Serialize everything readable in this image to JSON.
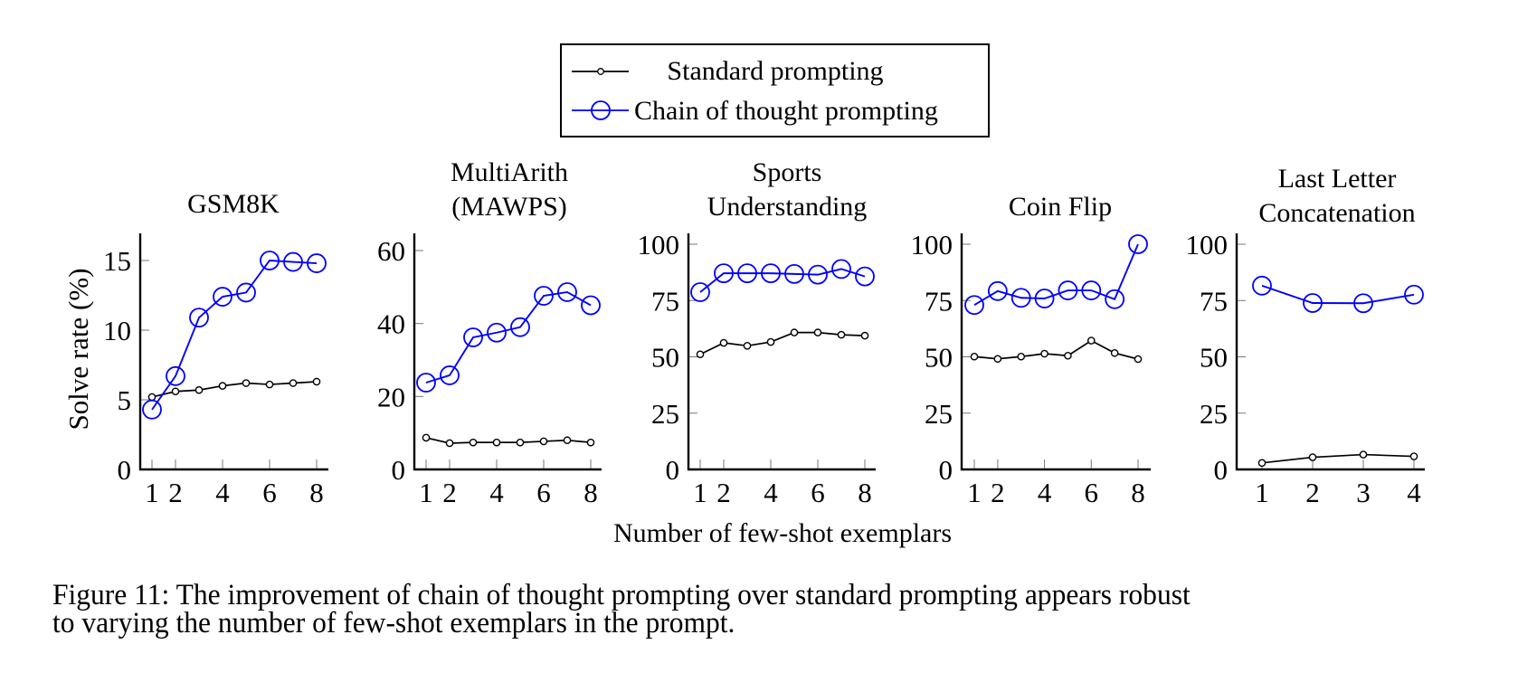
{
  "legend": {
    "standard": "Standard prompting",
    "cot": "Chain of thought prompting"
  },
  "colors": {
    "standard": "#000000",
    "cot": "#0000ff"
  },
  "xlabel": "Number of few-shot exemplars",
  "ylabel": "Solve rate (%)",
  "caption": {
    "line1": "Figure 11:  The improvement of chain of thought prompting over standard prompting appears robust",
    "line2": "to varying the number of few-shot exemplars in the prompt."
  },
  "chart_data": [
    {
      "type": "line",
      "title": [
        "GSM8K"
      ],
      "x": [
        1,
        2,
        3,
        4,
        5,
        6,
        7,
        8
      ],
      "xticks": [
        1,
        2,
        4,
        6,
        8
      ],
      "xlim": [
        1,
        8
      ],
      "ylim": [
        0,
        17
      ],
      "yticks": [
        0,
        5,
        10,
        15
      ],
      "ylabel": "Solve rate (%)",
      "series": [
        {
          "name": "Standard prompting",
          "values": [
            5.2,
            5.6,
            5.7,
            6.0,
            6.2,
            6.1,
            6.2,
            6.3
          ]
        },
        {
          "name": "Chain of thought prompting",
          "values": [
            4.3,
            6.7,
            10.9,
            12.4,
            12.7,
            15.0,
            14.9,
            14.8
          ]
        }
      ]
    },
    {
      "type": "line",
      "title": [
        "MultiArith",
        "(MAWPS)"
      ],
      "x": [
        1,
        2,
        3,
        4,
        5,
        6,
        7,
        8
      ],
      "xticks": [
        1,
        2,
        4,
        6,
        8
      ],
      "xlim": [
        1,
        8
      ],
      "ylim": [
        0,
        65
      ],
      "yticks": [
        0,
        20,
        40,
        60
      ],
      "series": [
        {
          "name": "Standard prompting",
          "values": [
            8.7,
            7.2,
            7.4,
            7.4,
            7.4,
            7.7,
            8.0,
            7.4
          ]
        },
        {
          "name": "Chain of thought prompting",
          "values": [
            23.8,
            25.8,
            36.2,
            37.5,
            39.0,
            47.6,
            48.6,
            45.0
          ]
        }
      ]
    },
    {
      "type": "line",
      "title": [
        "Sports",
        "Understanding"
      ],
      "x": [
        1,
        2,
        3,
        4,
        5,
        6,
        7,
        8
      ],
      "xticks": [
        1,
        2,
        4,
        6,
        8
      ],
      "xlim": [
        1,
        8
      ],
      "ylim": [
        0,
        105
      ],
      "yticks": [
        0,
        25,
        50,
        75,
        100
      ],
      "series": [
        {
          "name": "Standard prompting",
          "values": [
            51.1,
            56.2,
            54.9,
            56.6,
            60.8,
            60.8,
            59.8,
            59.4
          ]
        },
        {
          "name": "Chain of thought prompting",
          "values": [
            78.7,
            87.1,
            87.1,
            87.1,
            86.8,
            86.5,
            89.0,
            85.7
          ]
        }
      ]
    },
    {
      "type": "line",
      "title": [
        "Coin Flip"
      ],
      "x": [
        1,
        2,
        3,
        4,
        5,
        6,
        7,
        8
      ],
      "xticks": [
        1,
        2,
        4,
        6,
        8
      ],
      "xlim": [
        1,
        8
      ],
      "ylim": [
        0,
        105
      ],
      "yticks": [
        0,
        25,
        50,
        75,
        100
      ],
      "series": [
        {
          "name": "Standard prompting",
          "values": [
            50.1,
            49.1,
            50.1,
            51.4,
            50.5,
            57.2,
            51.7,
            49.0
          ]
        },
        {
          "name": "Chain of thought prompting",
          "values": [
            73.0,
            79.2,
            76.2,
            75.9,
            79.5,
            79.5,
            75.6,
            100.0
          ]
        }
      ]
    },
    {
      "type": "line",
      "title": [
        "Last Letter",
        "Concatenation"
      ],
      "x": [
        1,
        2,
        3,
        4
      ],
      "xticks": [
        1,
        2,
        3,
        4
      ],
      "xlim": [
        1,
        4
      ],
      "ylim": [
        0,
        105
      ],
      "yticks": [
        0,
        25,
        50,
        75,
        100
      ],
      "series": [
        {
          "name": "Standard prompting",
          "values": [
            2.9,
            5.4,
            6.6,
            5.8
          ]
        },
        {
          "name": "Chain of thought prompting",
          "values": [
            81.6,
            73.9,
            73.8,
            77.6
          ]
        }
      ]
    }
  ]
}
